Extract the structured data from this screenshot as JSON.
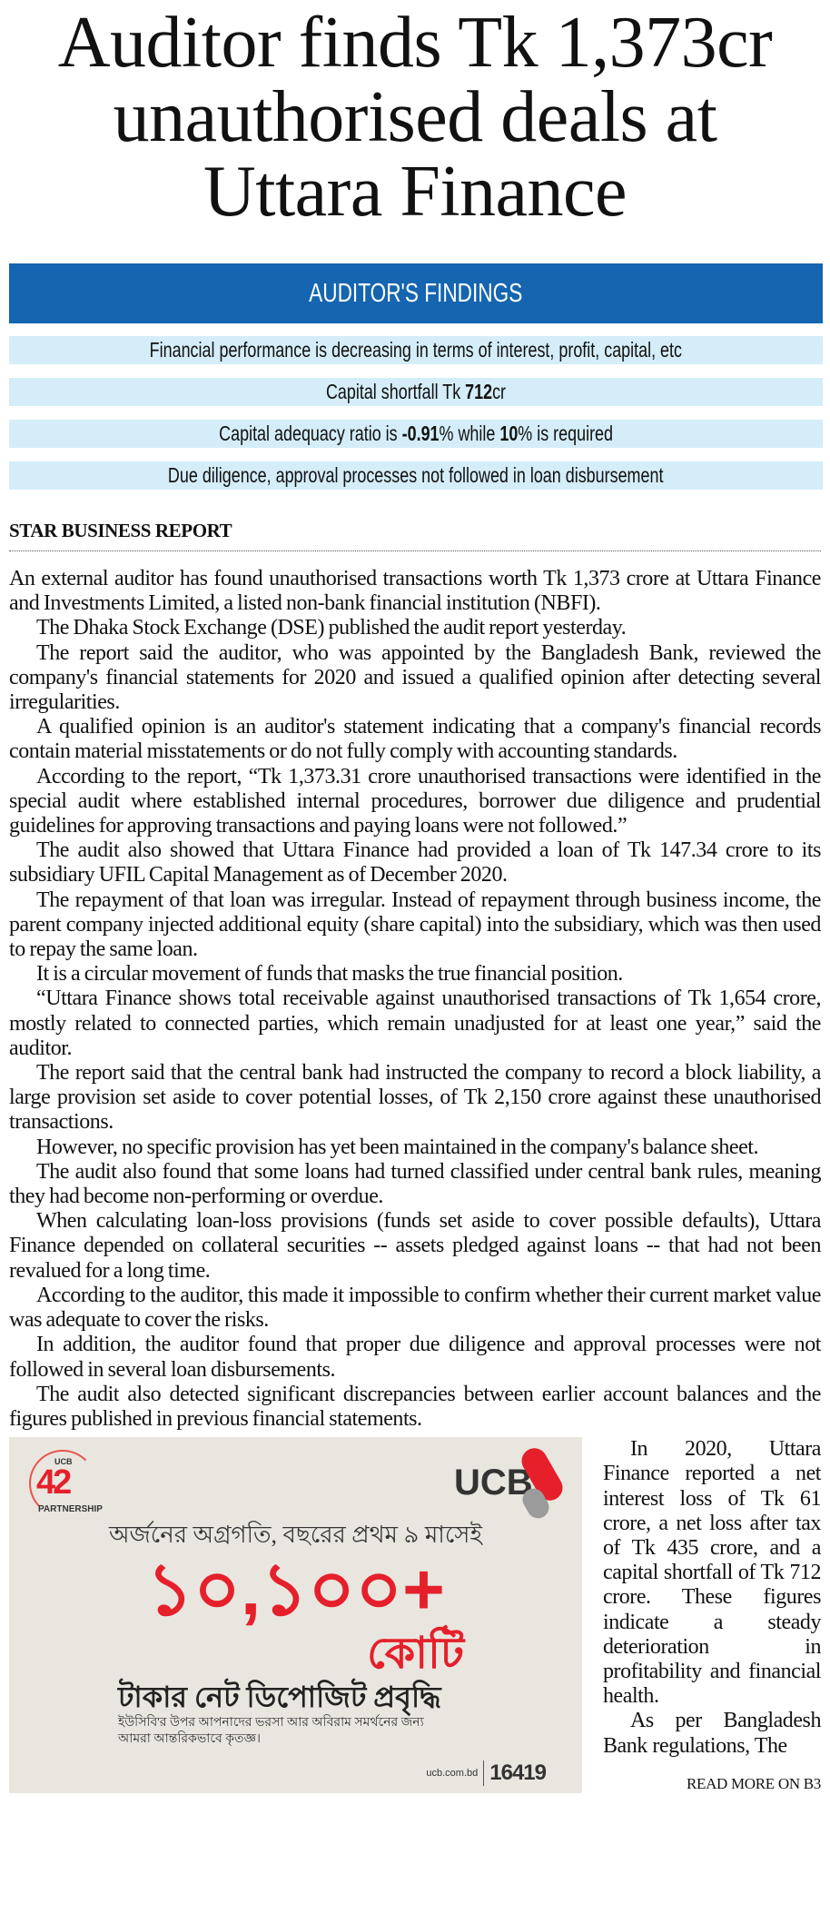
{
  "headline": {
    "lines": [
      "Auditor finds Tk 1,373cr",
      "unauthorised deals at",
      "Uttara Finance"
    ]
  },
  "findings": {
    "title": "AUDITOR'S FINDINGS",
    "accent_color": "#1565b0",
    "row_color": "#d4edf9",
    "items": [
      {
        "text": "Financial performance is decreasing in terms of interest, profit, capital, etc"
      },
      {
        "pre": "Capital shortfall Tk ",
        "bold": "712",
        "post": "cr"
      },
      {
        "pre": "Capital adequacy ratio is ",
        "bold": "-0.91",
        "mid": "% while ",
        "bold2": "10",
        "post": "% is required"
      },
      {
        "text": "Due diligence, approval processes not followed in loan disbursement"
      }
    ]
  },
  "byline": "STAR BUSINESS REPORT",
  "body": [
    "An external auditor has found unauthorised transactions worth Tk 1,373 crore at Uttara Finance and Investments Limited, a listed non-bank financial institution (NBFI).",
    "The Dhaka Stock Exchange (DSE) published the audit report yesterday.",
    "The report said the auditor, who was appointed by the Bangladesh Bank, reviewed the company's financial statements for 2020 and issued a qualified opinion after detecting several irregularities.",
    "A qualified opinion is an auditor's statement indicating that a company's financial records contain material misstatements or do not fully comply with accounting standards.",
    "According to the report, “Tk 1,373.31 crore unauthorised transactions were identified in the special audit where established internal procedures, borrower due diligence and prudential guidelines for approving transactions and paying loans were not followed.”",
    "The audit also showed that Uttara Finance had provided a loan of Tk 147.34 crore to its subsidiary UFIL Capital Management as of December 2020.",
    "The repayment of that loan was irregular. Instead of repayment through business income, the parent company injected additional equity (share capital) into the subsidiary, which was then used to repay the same loan.",
    "It is a circular movement of funds that masks the true financial position.",
    "“Uttara Finance shows total receivable against unauthorised transactions of Tk 1,654 crore, mostly related to connected parties, which remain unadjusted for at least one year,” said the auditor.",
    "The report said that the central bank had instructed the company to record a block liability, a large provision set aside to cover potential losses, of Tk 2,150 crore against these unauthorised transactions.",
    "However, no specific provision has yet been maintained in the company's balance sheet.",
    "The audit also found that some loans had turned classified under central bank rules, meaning they had become non-performing or overdue.",
    "When calculating loan-loss provisions (funds set aside to cover possible defaults), Uttara Finance depended on collateral securities -- assets pledged against loans -- that had not been revalued for a long time.",
    "According to the auditor, this made it impossible to confirm whether their current market value was adequate to cover the risks.",
    "In addition, the auditor found that proper due diligence and approval processes were not followed in several loan disbursements.",
    "The audit also detected significant discrepancies between earlier account balances and the figures published in previous financial statements."
  ],
  "column": [
    "In 2020, Uttara Finance reported a net interest loss of Tk 61 crore, a net loss after tax of Tk 435 crore, and a capital shortfall of Tk 712 crore. These figures indicate a steady deterioration in profitability and financial health.",
    "As per Bangladesh Bank regulations, The"
  ],
  "read_more": "READ MORE ON B3",
  "ad": {
    "brand": "UCB",
    "anniversary_number": "42",
    "anniversary_small": "UCB",
    "anniversary_label": "PARTNERSHIP",
    "tagline": "অর্জনের অগ্রগতি, বছরের প্রথম ৯ মাসেই",
    "amount": "১০,১০০+",
    "unit": "কোটি",
    "headline": "টাকার নেট ডিপোজিট প্রবৃদ্ধি",
    "thanks": "ইউসিবি'র উপর আপনাদের ভরসা আর অবিরাম সমর্থনের জন্য আমরা আন্তরিকভাবে কৃতজ্ঞ।",
    "website": "ucb.com.bd",
    "hotline": "16419",
    "brand_red": "#e5202b"
  }
}
